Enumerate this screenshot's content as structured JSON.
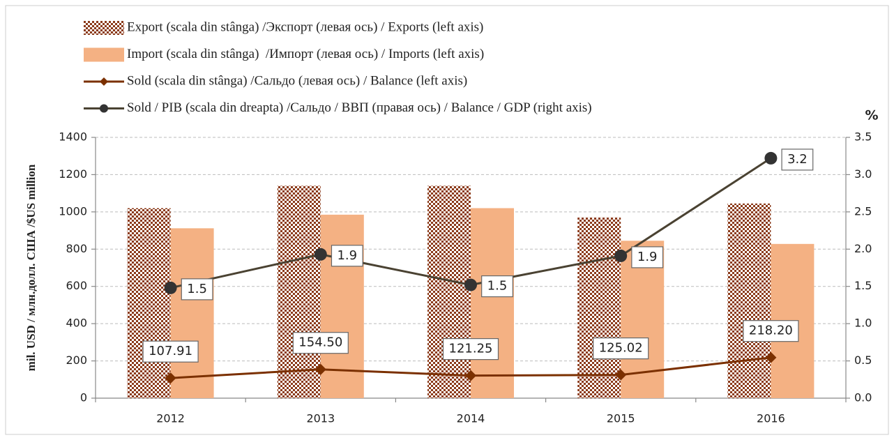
{
  "chart_data": {
    "type": "bar",
    "y_label": "mil. USD / млн.долл. США /$US million",
    "y2_label": "%",
    "categories": [
      "2012",
      "2013",
      "2014",
      "2015",
      "2016"
    ],
    "series": [
      {
        "name": "Export (scala din stânga) /Экспорт (левая ось) / Exports (left axis)",
        "type": "bar",
        "color": "#8b3a1a",
        "pattern": "checkered",
        "values": [
          1020,
          1140,
          1140,
          970,
          1045
        ]
      },
      {
        "name": "Import (scala din stânga)  /Импорт (левая ось) / Imports (left axis)",
        "type": "bar",
        "color": "#f4b183",
        "values": [
          912,
          985,
          1020,
          845,
          828
        ]
      },
      {
        "name": "Sold (scala din stânga) /Сальдо (левая ось) / Balance (left axis)",
        "type": "line",
        "marker": "diamond",
        "color": "#7b3000",
        "values": [
          107.91,
          154.5,
          121.25,
          125.02,
          218.2
        ],
        "value_labels": [
          "107.91",
          "154.50",
          "121.25",
          "125.02",
          "218.20"
        ]
      },
      {
        "name": "Sold / PIB (scala din dreapta) /Сальдо / ВВП (правая ось) / Balance / GDP (right axis)",
        "type": "line",
        "marker": "circle",
        "color": "#4a4232",
        "axis": "y2",
        "values": [
          1.48,
          1.93,
          1.52,
          1.91,
          3.22
        ],
        "value_labels": [
          "1.5",
          "1.9",
          "1.5",
          "1.9",
          "3.2"
        ]
      }
    ],
    "ylim": [
      0,
      1400
    ],
    "yticks": [
      0,
      200,
      400,
      600,
      800,
      1000,
      1200,
      1400
    ],
    "y2lim": [
      0,
      3.5
    ],
    "y2ticks": [
      {
        "value": 0,
        "label": "0.0"
      },
      {
        "value": 0.5,
        "label": "0.5"
      },
      {
        "value": 1,
        "label": "1.0"
      },
      {
        "value": 1.5,
        "label": "1.5"
      },
      {
        "value": 2,
        "label": "2.0"
      },
      {
        "value": 2.5,
        "label": "2.5"
      },
      {
        "value": 3,
        "label": "3.0"
      },
      {
        "value": 3.5,
        "label": "3.5"
      }
    ],
    "grid": true
  }
}
